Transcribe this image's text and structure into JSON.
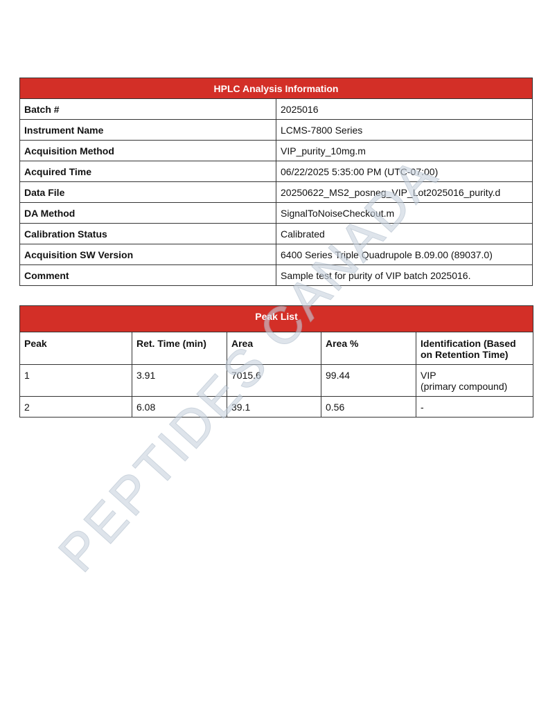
{
  "info": {
    "title": "HPLC Analysis Information",
    "rows": [
      {
        "key": "Batch #",
        "value": "2025016"
      },
      {
        "key": "Instrument Name",
        "value": "LCMS-7800 Series"
      },
      {
        "key": "Acquisition Method",
        "value": "VIP_purity_10mg.m"
      },
      {
        "key": "Acquired Time",
        "value": "06/22/2025 5:35:00 PM (UTC-07:00)"
      },
      {
        "key": "Data File",
        "value": "20250622_MS2_posneg_VIP_Lot2025016_purity.d"
      },
      {
        "key": "DA Method",
        "value": "SignalToNoiseCheckout.m"
      },
      {
        "key": "Calibration Status",
        "value": "Calibrated"
      },
      {
        "key": "Acquisition SW Version",
        "value": "6400 Series Triple Quadrupole B.09.00 (89037.0)"
      },
      {
        "key": "Comment",
        "value": "Sample test for purity of VIP batch 2025016."
      }
    ]
  },
  "peaks": {
    "title": "Peak List",
    "columns": [
      "Peak",
      "Ret. Time (min)",
      "Area",
      "Area %",
      "Identification (Based on Retention Time)"
    ],
    "rows": [
      {
        "peak": "1",
        "ret_time": "3.91",
        "area": "7015.6",
        "area_pct": "99.44",
        "id": "VIP",
        "id_note": "(primary compound)"
      },
      {
        "peak": "2",
        "ret_time": "6.08",
        "area": "39.1",
        "area_pct": "0.56",
        "id": "-",
        "id_note": ""
      }
    ]
  },
  "watermark": "PEPTIDES CANADA",
  "colors": {
    "header": "#d32f27"
  }
}
